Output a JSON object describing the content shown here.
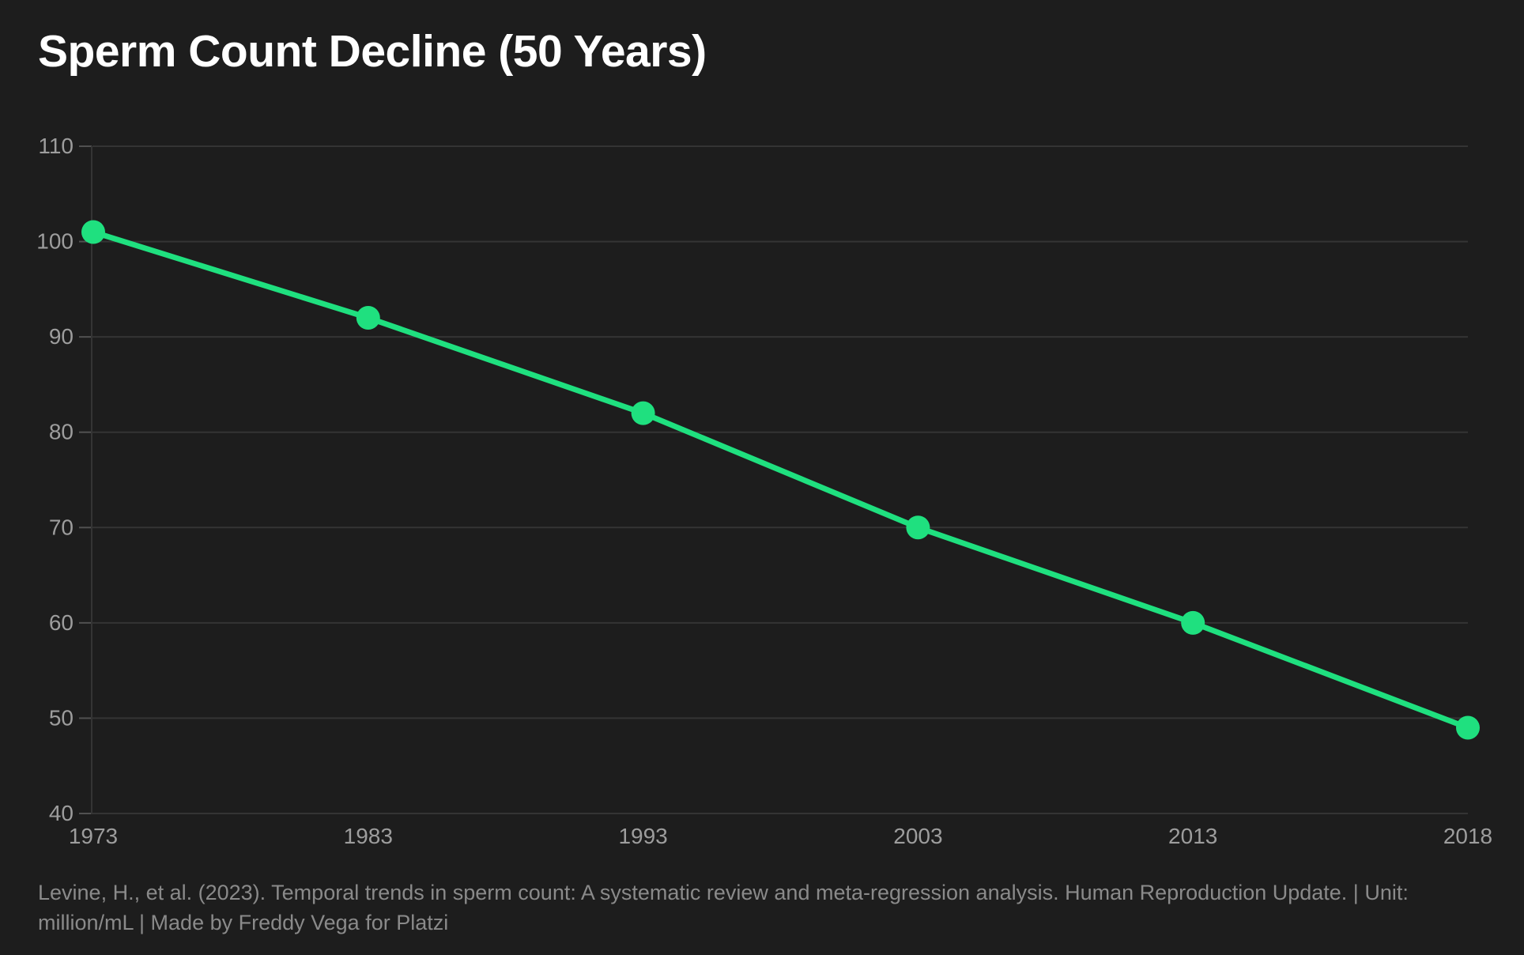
{
  "page": {
    "title": "Sperm Count Decline (50 Years)",
    "footer": "Levine, H., et al. (2023). Temporal trends in sperm count: A systematic review and meta-regression analysis. Human Reproduction Update. | Unit: million/mL | Made by Freddy Vega for Platzi"
  },
  "colors": {
    "background": "#1d1d1d",
    "line_green": "#1fe07f",
    "gridline": "#343434",
    "tick": "#515151",
    "axis_label": "#9d9d9d",
    "title_text": "#ffffff",
    "footer_text": "#8a8a8a"
  },
  "chart_data": {
    "type": "line",
    "title": "Sperm Count Decline (50 Years)",
    "categories": [
      "1973",
      "1983",
      "1993",
      "2003",
      "2013",
      "2018"
    ],
    "values": [
      101,
      92,
      82,
      70,
      60,
      49
    ],
    "unit": "million/mL",
    "xlabel": "",
    "ylabel": "",
    "ylim": [
      40,
      110
    ],
    "yticks": [
      40,
      50,
      60,
      70,
      80,
      90,
      100,
      110
    ],
    "grid": "horizontal",
    "legend": "none",
    "x_spacing": "even",
    "marker": "circle"
  }
}
